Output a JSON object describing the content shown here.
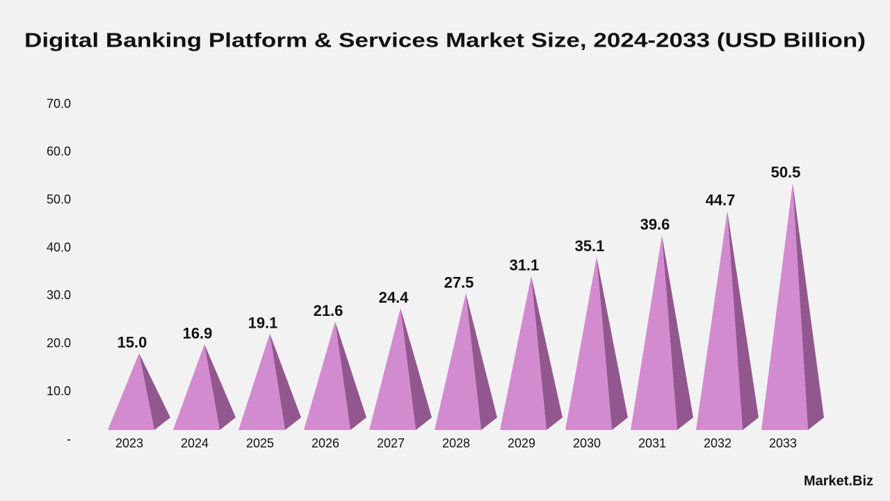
{
  "chart_data": {
    "type": "pyramid",
    "title": "Digital Banking Platform & Services Market Size, 2024-2033 (USD Billion)",
    "categories": [
      "2023",
      "2024",
      "2025",
      "2026",
      "2027",
      "2028",
      "2029",
      "2030",
      "2031",
      "2032",
      "2033"
    ],
    "values": [
      15.0,
      16.9,
      19.1,
      21.6,
      24.4,
      27.5,
      31.1,
      35.1,
      39.6,
      44.7,
      50.5
    ],
    "value_labels": [
      "15.0",
      "16.9",
      "19.1",
      "21.6",
      "24.4",
      "27.5",
      "31.1",
      "35.1",
      "39.6",
      "44.7",
      "50.5"
    ],
    "color": "#d38bcf",
    "shade_color": "#93578f",
    "ylim": [
      0,
      70
    ],
    "yticks": [
      {
        "value": 0,
        "label": "-"
      },
      {
        "value": 10,
        "label": "10.0"
      },
      {
        "value": 20,
        "label": "20.0"
      },
      {
        "value": 30,
        "label": "30.0"
      },
      {
        "value": 40,
        "label": "40.0"
      },
      {
        "value": 50,
        "label": "50.0"
      },
      {
        "value": 60,
        "label": "60.0"
      },
      {
        "value": 70,
        "label": "70.0"
      }
    ],
    "grid": false,
    "watermark": "Market.Biz"
  }
}
